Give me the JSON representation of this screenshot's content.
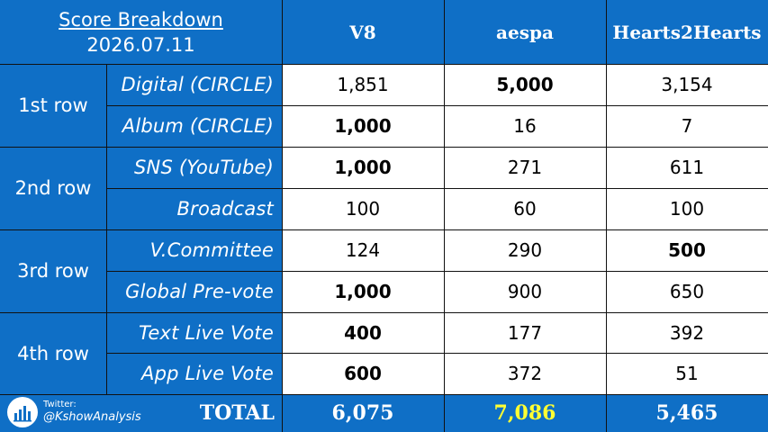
{
  "header": {
    "title": "Score Breakdown",
    "date": "2026.07.11",
    "columns": [
      "V8",
      "aespa",
      "Hearts2Hearts"
    ]
  },
  "groups": [
    "1st row",
    "2nd row",
    "3rd row",
    "4th row"
  ],
  "rows": [
    {
      "category": "Digital (CIRCLE)",
      "values": [
        "1,851",
        "5,000",
        "3,154"
      ],
      "bold": [
        false,
        true,
        false
      ]
    },
    {
      "category": "Album (CIRCLE)",
      "values": [
        "1,000",
        "16",
        "7"
      ],
      "bold": [
        true,
        false,
        false
      ]
    },
    {
      "category": "SNS (YouTube)",
      "values": [
        "1,000",
        "271",
        "611"
      ],
      "bold": [
        true,
        false,
        false
      ]
    },
    {
      "category": "Broadcast",
      "values": [
        "100",
        "60",
        "100"
      ],
      "bold": [
        false,
        false,
        false
      ]
    },
    {
      "category": "V.Committee",
      "values": [
        "124",
        "290",
        "500"
      ],
      "bold": [
        false,
        false,
        true
      ]
    },
    {
      "category": "Global Pre-vote",
      "values": [
        "1,000",
        "900",
        "650"
      ],
      "bold": [
        true,
        false,
        false
      ]
    },
    {
      "category": "Text Live Vote",
      "values": [
        "400",
        "177",
        "392"
      ],
      "bold": [
        true,
        false,
        false
      ]
    },
    {
      "category": "App Live Vote",
      "values": [
        "600",
        "372",
        "51"
      ],
      "bold": [
        true,
        false,
        false
      ]
    }
  ],
  "total": {
    "label": "TOTAL",
    "values": [
      "6,075",
      "7,086",
      "5,465"
    ],
    "highlight_color": "#ffff33"
  },
  "credit": {
    "label": "Twitter:",
    "handle": "@KshowAnalysis",
    "icon": "bar-chart-icon"
  },
  "colors": {
    "header_blue": "#0f6fc6",
    "grid_line": "#111111",
    "white": "#ffffff"
  }
}
